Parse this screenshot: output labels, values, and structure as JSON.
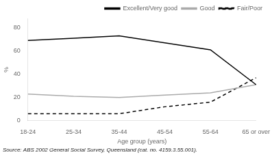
{
  "chart_data": {
    "type": "line",
    "categories": [
      "18-24",
      "25-34",
      "35-44",
      "45-54",
      "55-64",
      "65 or over"
    ],
    "series": [
      {
        "name": "Excellent/Very good",
        "color": "#000000",
        "line_style": "solid",
        "values": [
          69,
          71,
          73,
          67,
          61,
          31
        ]
      },
      {
        "name": "Good",
        "color": "#aaaaaa",
        "line_style": "solid",
        "values": [
          23,
          21,
          20,
          22,
          24,
          31
        ]
      },
      {
        "name": "Fair/Poor",
        "color": "#000000",
        "line_style": "dashed",
        "values": [
          6,
          6,
          6,
          12,
          16,
          37
        ]
      }
    ],
    "xlabel": "Age group (years)",
    "ylabel": "%",
    "ylim": [
      0,
      88
    ],
    "yticks": [
      0,
      20,
      40,
      60,
      80
    ],
    "grid": false,
    "legend": "upper right",
    "annotations": [
      "Source: ABS 2002 General Social Survey, Queensland (cat. no. 4159.3.55.001)."
    ]
  }
}
